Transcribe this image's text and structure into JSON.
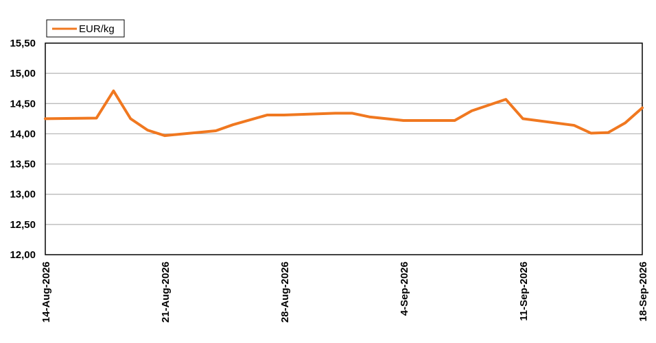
{
  "chart_data": {
    "type": "line",
    "title": "",
    "xlabel": "",
    "ylabel": "",
    "ylim": [
      12.0,
      15.5
    ],
    "y_ticks": [
      "12,00",
      "12,50",
      "13,00",
      "13,50",
      "14,00",
      "14,50",
      "15,00",
      "15,50"
    ],
    "x_range": [
      "2026-08-14",
      "2026-09-18"
    ],
    "x_ticks": [
      {
        "date": "2026-08-14",
        "label": "14-Aug-2026"
      },
      {
        "date": "2026-08-21",
        "label": "21-Aug-2026"
      },
      {
        "date": "2026-08-28",
        "label": "28-Aug-2026"
      },
      {
        "date": "2026-09-04",
        "label": "4-Sep-2026"
      },
      {
        "date": "2026-09-11",
        "label": "11-Sep-2026"
      },
      {
        "date": "2026-09-18",
        "label": "18-Sep-2026"
      }
    ],
    "grid": true,
    "legend": "top-left",
    "series": [
      {
        "name": "EUR/kg",
        "color": "#f07820",
        "points": [
          {
            "x": "2026-08-14",
            "y": 14.25
          },
          {
            "x": "2026-08-17",
            "y": 14.26
          },
          {
            "x": "2026-08-18",
            "y": 14.71
          },
          {
            "x": "2026-08-19",
            "y": 14.25
          },
          {
            "x": "2026-08-20",
            "y": 14.06
          },
          {
            "x": "2026-08-21",
            "y": 13.97
          },
          {
            "x": "2026-08-24",
            "y": 14.05
          },
          {
            "x": "2026-08-25",
            "y": 14.15
          },
          {
            "x": "2026-08-27",
            "y": 14.31
          },
          {
            "x": "2026-08-28",
            "y": 14.31
          },
          {
            "x": "2026-08-31",
            "y": 14.34
          },
          {
            "x": "2026-09-01",
            "y": 14.34
          },
          {
            "x": "2026-09-02",
            "y": 14.28
          },
          {
            "x": "2026-09-03",
            "y": 14.25
          },
          {
            "x": "2026-09-04",
            "y": 14.22
          },
          {
            "x": "2026-09-07",
            "y": 14.22
          },
          {
            "x": "2026-09-08",
            "y": 14.38
          },
          {
            "x": "2026-09-10",
            "y": 14.57
          },
          {
            "x": "2026-09-11",
            "y": 14.25
          },
          {
            "x": "2026-09-14",
            "y": 14.14
          },
          {
            "x": "2026-09-15",
            "y": 14.01
          },
          {
            "x": "2026-09-16",
            "y": 14.02
          },
          {
            "x": "2026-09-17",
            "y": 14.18
          },
          {
            "x": "2026-09-18",
            "y": 14.43
          }
        ]
      }
    ]
  }
}
